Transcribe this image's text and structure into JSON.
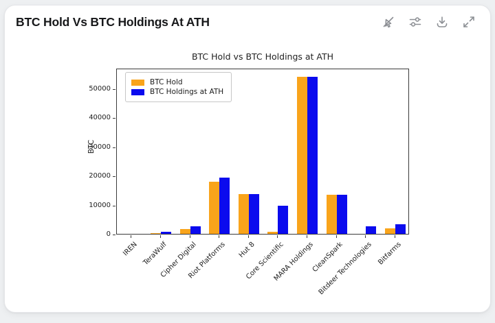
{
  "header": {
    "title": "BTC Hold Vs BTC Holdings At ATH"
  },
  "toolbar": {
    "icons": [
      "pointer-off-icon",
      "sliders-icon",
      "download-icon",
      "expand-icon"
    ]
  },
  "chart_data": {
    "type": "bar",
    "title": "BTC Hold vs BTC Holdings at ATH",
    "xlabel": "",
    "ylabel": "BTC",
    "categories": [
      "IREN",
      "TeraWulf",
      "Cipher Digital",
      "Riot Platforms",
      "Hut 8",
      "Core Scientific",
      "MARA Holdings",
      "CleanSpark",
      "Bitdeer Technologies",
      "Bitfarms"
    ],
    "series": [
      {
        "name": "BTC Hold",
        "color": "#f9a41b",
        "values": [
          0,
          300,
          1600,
          18000,
          13700,
          800,
          54000,
          13500,
          0,
          1800
        ]
      },
      {
        "name": "BTC Holdings at ATH",
        "color": "#0b0bee",
        "values": [
          0,
          600,
          2500,
          19300,
          13700,
          9700,
          54000,
          13500,
          2500,
          3200
        ]
      }
    ],
    "yticks": [
      0,
      10000,
      20000,
      30000,
      40000,
      50000
    ],
    "ylim": [
      0,
      57000
    ],
    "grid": false,
    "legend_position": "upper left",
    "xtick_rotation": 45
  }
}
